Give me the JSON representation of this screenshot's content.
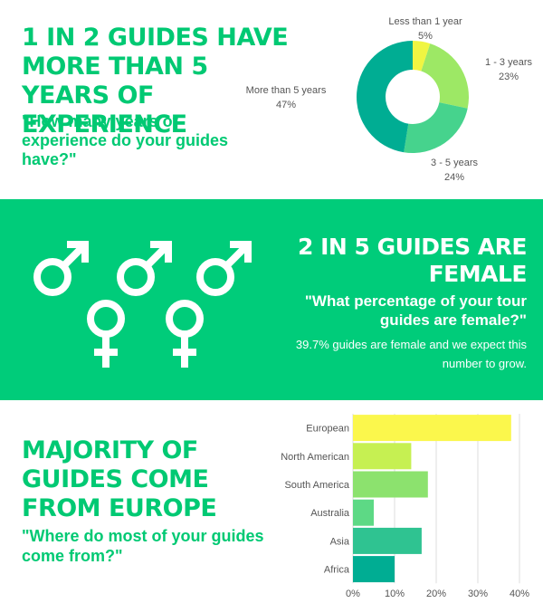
{
  "experience": {
    "headline": "1 IN 2 GUIDES HAVE MORE THAN 5 YEARS OF EXPERIENCE",
    "question": "\"How many years of experience do your guides have?\""
  },
  "gender": {
    "headline_line1": "2 IN 5 GUIDES ARE",
    "headline_line2": "FEMALE",
    "question": "\"What percentage of your tour guides are female?\"",
    "note": "39.7% guides are female and we expect this number to grow.",
    "symbols": {
      "male_count": 3,
      "female_count": 2,
      "male_icon": "male-symbol-icon",
      "female_icon": "female-symbol-icon",
      "color": "#ffffff"
    }
  },
  "origin": {
    "headline": "MAJORITY OF GUIDES COME FROM EUROPE",
    "question": "\"Where do most of your guides come from?\""
  },
  "colors": {
    "green": "#00cc7a",
    "text_green": "#00c973"
  },
  "chart_data": [
    {
      "type": "pie",
      "variant": "donut",
      "slices": [
        {
          "label": "Less than 1 year",
          "value": 5,
          "display": "5%",
          "color": "#f0f542"
        },
        {
          "label": "1 - 3 years",
          "value": 23,
          "display": "23%",
          "color": "#9de865"
        },
        {
          "label": "3 - 5 years",
          "value": 24,
          "display": "24%",
          "color": "#46d38d"
        },
        {
          "label": "More than 5 years",
          "value": 47,
          "display": "47%",
          "color": "#00ad93"
        }
      ]
    },
    {
      "type": "bar",
      "orientation": "horizontal",
      "categories": [
        "European",
        "North American",
        "South America",
        "Australia",
        "Asia",
        "Africa"
      ],
      "values": [
        38,
        14,
        18,
        5,
        16.5,
        10
      ],
      "colors": [
        "#fbf74c",
        "#c6f052",
        "#8ce26e",
        "#5dd985",
        "#2fc391",
        "#00ad93"
      ],
      "xlim": [
        0,
        40
      ],
      "xticks": [
        "0%",
        "10%",
        "20%",
        "30%",
        "40%"
      ],
      "grid": true
    }
  ]
}
